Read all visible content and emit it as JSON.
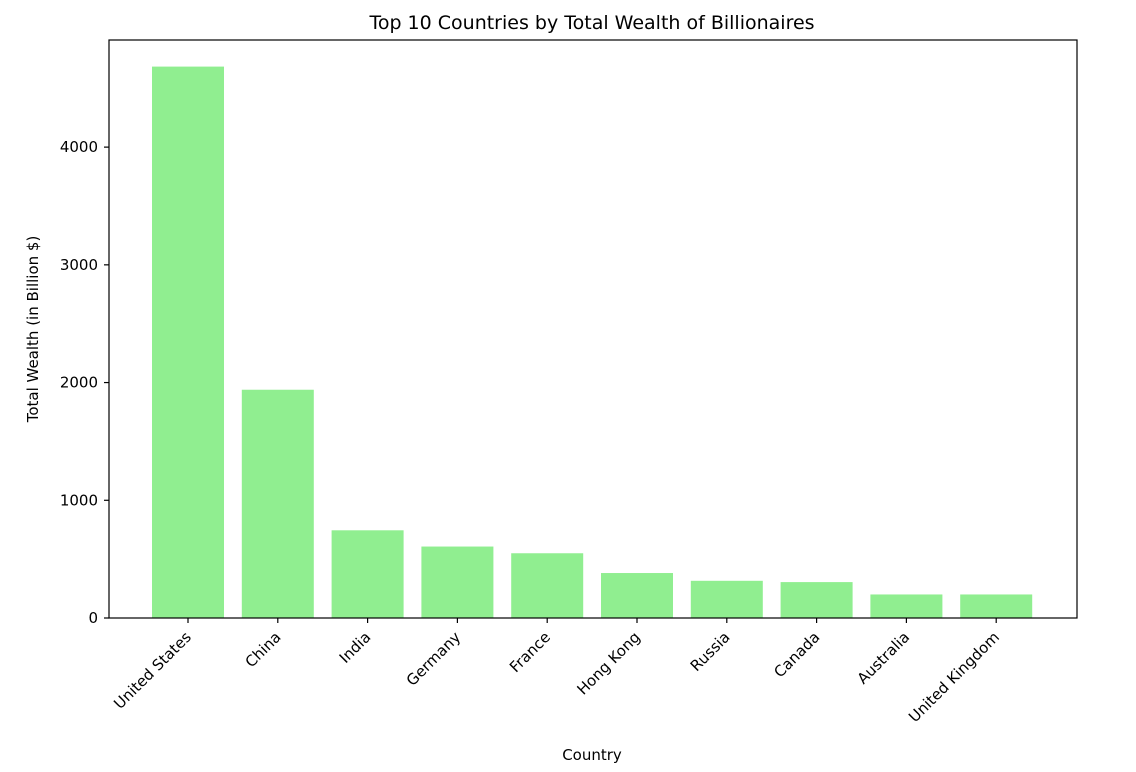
{
  "chart_data": {
    "type": "bar",
    "title": "Top 10 Countries by Total Wealth of Billionaires",
    "xlabel": "Country",
    "ylabel": "Total Wealth (in Billion $)",
    "categories": [
      "United States",
      "China",
      "India",
      "Germany",
      "France",
      "Hong Kong",
      "Russia",
      "Canada",
      "Australia",
      "United Kingdom"
    ],
    "values": [
      4684,
      1939,
      745,
      607,
      550,
      382,
      316,
      305,
      200,
      200
    ],
    "ylim": [
      0,
      4910
    ],
    "yticks": [
      0,
      1000,
      2000,
      3000,
      4000
    ],
    "bar_color": "#90ee90",
    "grid": false,
    "legend": "none"
  }
}
